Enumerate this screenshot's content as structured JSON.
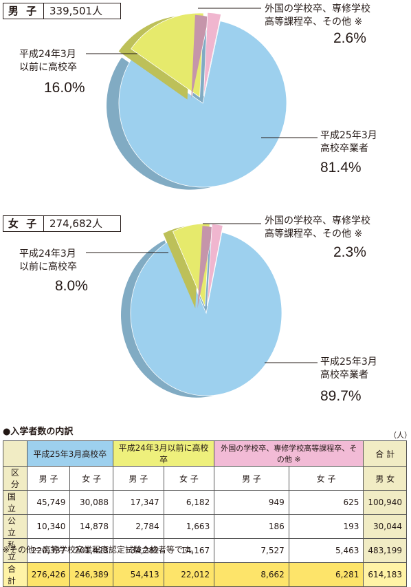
{
  "colors": {
    "graduate_2013": "#9dd0ee",
    "before_2012": "#e6ea6c",
    "foreign": "#f0b6cf"
  },
  "chart_data": [
    {
      "type": "pie",
      "gender": "男 子",
      "total": "339,501人",
      "slices": [
        {
          "label_line1": "平成25年3月",
          "label_line2": "高校卒業者",
          "pct_text": "81.4%",
          "value": 81.4
        },
        {
          "label_line1": "平成24年3月",
          "label_line2": "以前に高校卒",
          "pct_text": "16.0%",
          "value": 16.0
        },
        {
          "label_line1": "外国の学校卒、専修学校",
          "label_line2": "高等課程卒、その他 ※",
          "pct_text": "2.6%",
          "value": 2.6
        }
      ]
    },
    {
      "type": "pie",
      "gender": "女 子",
      "total": "274,682人",
      "slices": [
        {
          "label_line1": "平成25年3月",
          "label_line2": "高校卒業者",
          "pct_text": "89.7%",
          "value": 89.7
        },
        {
          "label_line1": "平成24年3月",
          "label_line2": "以前に高校卒",
          "pct_text": "8.0%",
          "value": 8.0
        },
        {
          "label_line1": "外国の学校卒、専修学校",
          "label_line2": "高等課程卒、その他 ※",
          "pct_text": "2.3%",
          "value": 2.3
        }
      ]
    }
  ],
  "table": {
    "title": "●入学者数の内訳",
    "unit": "（人）",
    "groups": [
      "平成25年3月高校卒",
      "平成24年3月以前に高校卒",
      "外国の学校卒、専修学校高等課程卒、その他 ※",
      "合 計"
    ],
    "sub_header": [
      "区分",
      "男 子",
      "女 子",
      "男 子",
      "女 子",
      "男 子",
      "女 子",
      "男 女"
    ],
    "rows": [
      [
        "国立",
        "45,749",
        "30,088",
        "17,347",
        "6,182",
        "949",
        "625",
        "100,940"
      ],
      [
        "公立",
        "10,340",
        "14,878",
        "2,784",
        "1,663",
        "186",
        "193",
        "30,044"
      ],
      [
        "私立",
        "220,337",
        "201,423",
        "34,282",
        "14,167",
        "7,527",
        "5,463",
        "483,199"
      ],
      [
        "合計",
        "276,426",
        "246,389",
        "54,413",
        "22,012",
        "8,662",
        "6,281",
        "614,183"
      ]
    ],
    "note": "※その他＝高等学校卒業程度認定試験合格者等です。"
  }
}
